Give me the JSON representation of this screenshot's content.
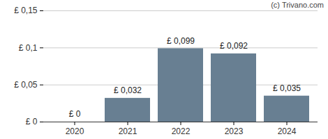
{
  "chart_data": {
    "type": "bar",
    "annotation": "(c) Trivano.com",
    "categories": [
      "2020",
      "2021",
      "2022",
      "2023",
      "2024"
    ],
    "values": [
      0,
      0.032,
      0.099,
      0.092,
      0.035
    ],
    "value_labels": [
      "£ 0",
      "£ 0,032",
      "£ 0,099",
      "£ 0,092",
      "£ 0,035"
    ],
    "data_labels": true,
    "color": "#687f92",
    "ylim": [
      0,
      0.15
    ],
    "yticks": [
      {
        "value": 0,
        "label": "£ 0"
      },
      {
        "value": 0.05,
        "label": "£ 0,05"
      },
      {
        "value": 0.1,
        "label": "£ 0,1"
      },
      {
        "value": 0.15,
        "label": "£ 0,15"
      }
    ],
    "grid": true
  }
}
